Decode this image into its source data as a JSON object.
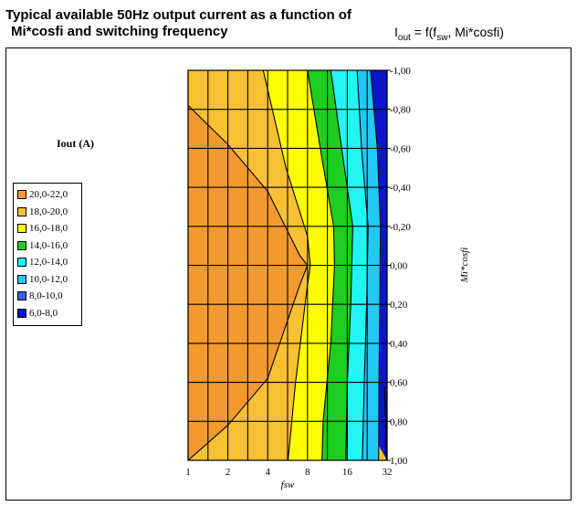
{
  "header": {
    "title_line1": "Typical available 50Hz output current as a function of",
    "title_line2": "Mi*cosfi and switching frequency",
    "formula_main": "I",
    "formula_sub": "out",
    "formula_rest": " = f(f",
    "formula_sub2": "sw",
    "formula_end": ", Mi*cosfi)"
  },
  "chart_data": {
    "type": "heatmap",
    "xlabel": "fsw",
    "ylabel": "Mi*cosfi",
    "legend_title": "Iout (A)",
    "x": [
      1,
      2,
      4,
      8,
      16,
      32
    ],
    "x_ticks": [
      "1",
      "2",
      "4",
      "8",
      "16",
      "32"
    ],
    "x_scale": "log2",
    "y_ticks": [
      "-1,00",
      "-0,80",
      "-0,60",
      "-0,40",
      "-0,20",
      "0,00",
      "0,20",
      "0,40",
      "0,60",
      "0,80",
      "1,00"
    ],
    "ylim": [
      -1,
      1
    ],
    "grid": true,
    "legend_position": "left",
    "legend": [
      {
        "label": "20,0-22,0",
        "color": "#f39a2e"
      },
      {
        "label": "18,0-20,0",
        "color": "#f8c033"
      },
      {
        "label": "16,0-18,0",
        "color": "#ffff00"
      },
      {
        "label": "14,0-16,0",
        "color": "#1ece1e"
      },
      {
        "label": "12,0-14,0",
        "color": "#22f3f3"
      },
      {
        "label": "10,0-12,0",
        "color": "#22c9f6"
      },
      {
        "label": "8,0-10,0",
        "color": "#3a62d8"
      },
      {
        "label": "6,0-8,0",
        "color": "#0a14c8"
      }
    ],
    "contours": [
      {
        "level": 20,
        "points": [
          [
            1,
            -0.82
          ],
          [
            2,
            -0.62
          ],
          [
            4,
            -0.38
          ],
          [
            7,
            -0.05
          ],
          [
            8,
            0.0
          ],
          [
            7,
            0.1
          ],
          [
            4,
            0.58
          ],
          [
            2,
            0.82
          ],
          [
            1,
            1.0
          ]
        ]
      },
      {
        "level": 18,
        "points": [
          [
            3.7,
            -1.0
          ],
          [
            5.5,
            -0.5
          ],
          [
            8,
            -0.15
          ],
          [
            8.4,
            0.0
          ],
          [
            8,
            0.1
          ],
          [
            6.5,
            0.6
          ],
          [
            5.7,
            1.0
          ]
        ]
      },
      {
        "level": 16,
        "points": [
          [
            8,
            -1.0
          ],
          [
            10,
            -0.6
          ],
          [
            12.6,
            -0.2
          ],
          [
            12.8,
            0.0
          ],
          [
            12,
            0.4
          ],
          [
            10.5,
            0.8
          ],
          [
            10.3,
            1.0
          ]
        ]
      },
      {
        "level": 14,
        "points": [
          [
            12,
            -1.0
          ],
          [
            14.5,
            -0.6
          ],
          [
            17.6,
            -0.2
          ],
          [
            17,
            0.2
          ],
          [
            16,
            0.6
          ],
          [
            15.6,
            1.0
          ]
        ]
      },
      {
        "level": 12,
        "points": [
          [
            19,
            -1.0
          ],
          [
            20.5,
            -0.6
          ],
          [
            23,
            -0.2
          ],
          [
            22.4,
            0.2
          ],
          [
            21.5,
            0.6
          ],
          [
            20.8,
            1.0
          ]
        ]
      },
      {
        "level": 10,
        "points": [
          [
            24,
            -1.0
          ],
          [
            27,
            -0.6
          ],
          [
            28.5,
            -0.2
          ],
          [
            28.2,
            0.2
          ],
          [
            27.8,
            0.6
          ],
          [
            27.6,
            1.0
          ]
        ]
      },
      {
        "level": 8,
        "points": [
          [
            30.5,
            0.62
          ],
          [
            31.3,
            0.82
          ],
          [
            31.6,
            1.0
          ]
        ]
      }
    ]
  }
}
